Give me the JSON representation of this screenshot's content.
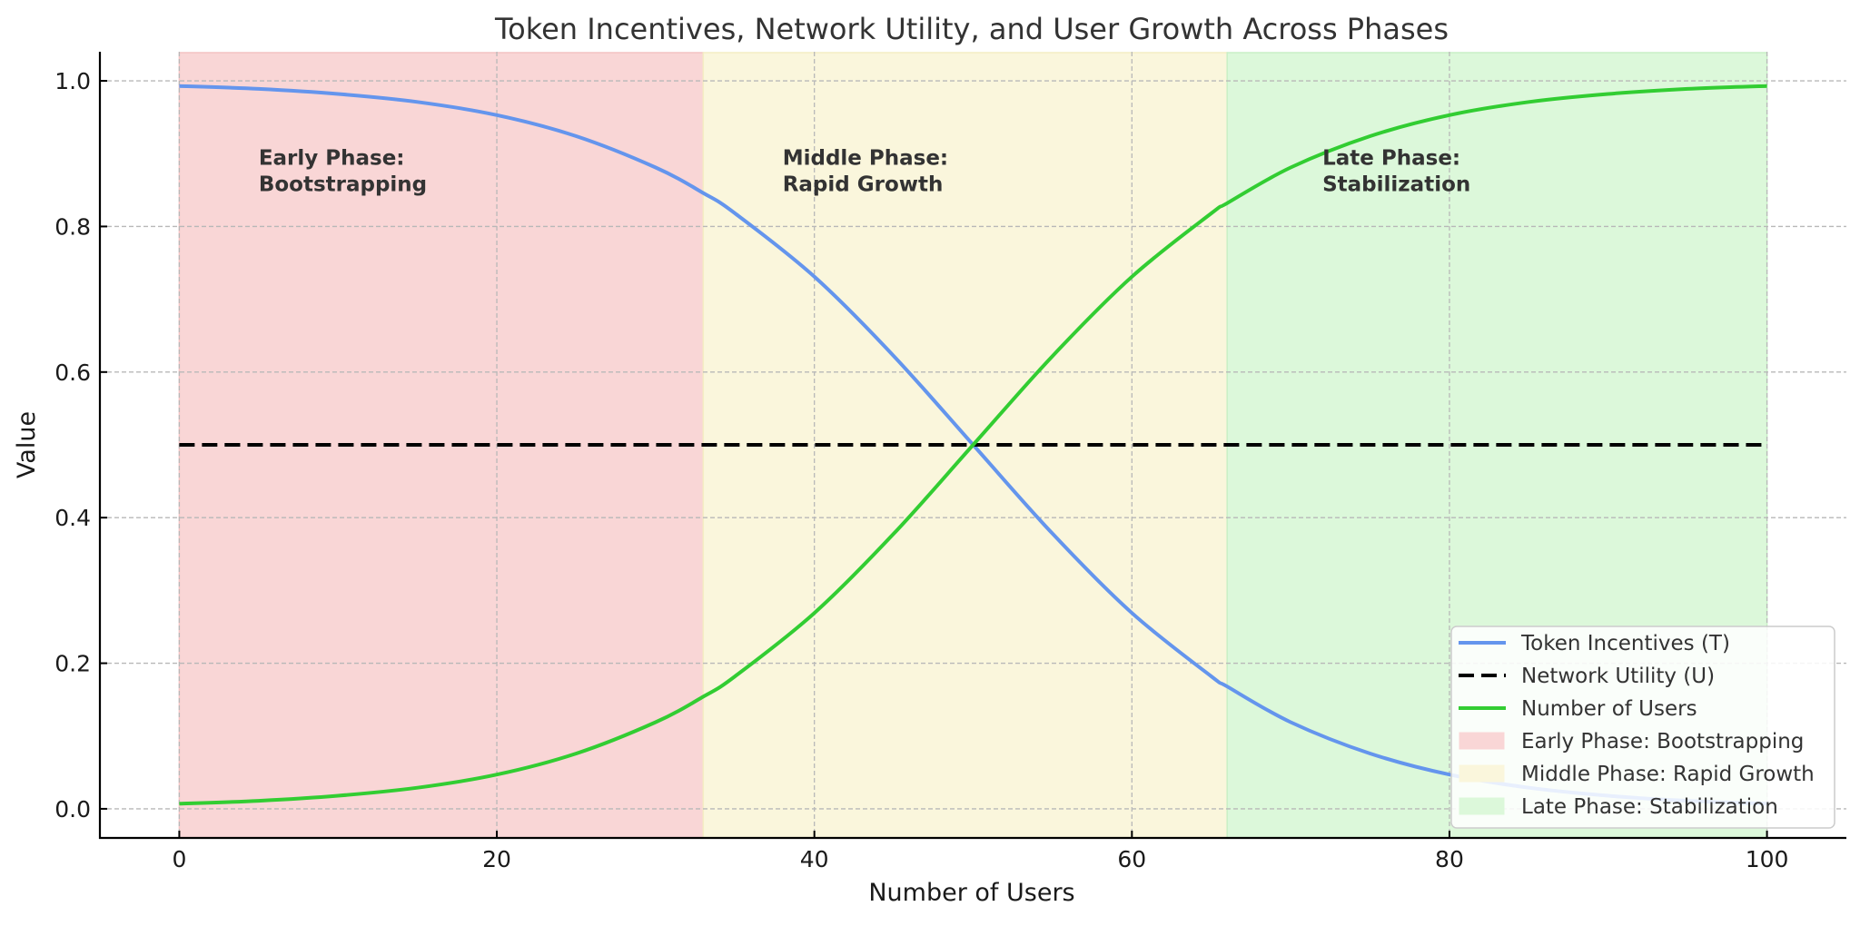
{
  "chart_data": {
    "type": "line",
    "title": "Token Incentives, Network Utility, and User Growth Across Phases",
    "xlabel": "Number of Users",
    "ylabel": "Value",
    "xlim": [
      -5,
      105
    ],
    "ylim": [
      -0.04,
      1.04
    ],
    "xticks": [
      0,
      20,
      40,
      60,
      80,
      100
    ],
    "xtick_labels": [
      "0",
      "20",
      "40",
      "60",
      "80",
      "100"
    ],
    "yticks": [
      0.0,
      0.2,
      0.4,
      0.6,
      0.8,
      1.0
    ],
    "ytick_labels": [
      "0.0",
      "0.2",
      "0.4",
      "0.6",
      "0.8",
      "1.0"
    ],
    "grid": true,
    "legend_position": "lower right",
    "x": [
      0,
      5,
      10,
      15,
      20,
      25,
      30,
      33,
      35,
      40,
      45,
      50,
      55,
      60,
      65,
      66,
      70,
      75,
      80,
      85,
      90,
      95,
      100
    ],
    "series": [
      {
        "name": "Token Incentives (T)",
        "color": "#6495ED",
        "style": "solid",
        "values": [
          0.993,
          0.989,
          0.982,
          0.971,
          0.953,
          0.924,
          0.881,
          0.846,
          0.818,
          0.731,
          0.622,
          0.5,
          0.378,
          0.269,
          0.182,
          0.168,
          0.119,
          0.076,
          0.047,
          0.029,
          0.018,
          0.011,
          0.007
        ]
      },
      {
        "name": "Network Utility (U)",
        "color": "#000000",
        "style": "dashed",
        "values": [
          0.5,
          0.5,
          0.5,
          0.5,
          0.5,
          0.5,
          0.5,
          0.5,
          0.5,
          0.5,
          0.5,
          0.5,
          0.5,
          0.5,
          0.5,
          0.5,
          0.5,
          0.5,
          0.5,
          0.5,
          0.5,
          0.5,
          0.5
        ]
      },
      {
        "name": "Number of Users",
        "color": "#32CD32",
        "style": "solid",
        "values": [
          0.007,
          0.011,
          0.018,
          0.029,
          0.047,
          0.076,
          0.119,
          0.154,
          0.182,
          0.269,
          0.378,
          0.5,
          0.622,
          0.731,
          0.818,
          0.832,
          0.881,
          0.924,
          0.953,
          0.971,
          0.982,
          0.989,
          0.993
        ]
      }
    ],
    "phases": [
      {
        "name": "Early Phase: Bootstrapping",
        "label_lines": [
          "Early Phase:",
          "Bootstrapping"
        ],
        "x_start": 0,
        "x_end": 33,
        "label_x": 5,
        "label_y": 0.9,
        "fill": "#f9d6d6",
        "edge": "#f4c4c4"
      },
      {
        "name": "Middle Phase: Rapid Growth",
        "label_lines": [
          "Middle Phase:",
          "Rapid Growth"
        ],
        "x_start": 33,
        "x_end": 66,
        "label_x": 38,
        "label_y": 0.9,
        "fill": "#faf6dc",
        "edge": "#f4edc4"
      },
      {
        "name": "Late Phase: Stabilization",
        "label_lines": [
          "Late Phase:",
          "Stabilization"
        ],
        "x_start": 66,
        "x_end": 100,
        "label_x": 72,
        "label_y": 0.9,
        "fill": "#dcf8da",
        "edge": "#c8efc6"
      }
    ],
    "legend": [
      {
        "label": "Token Incentives (T)",
        "kind": "line",
        "color": "#6495ED",
        "style": "solid"
      },
      {
        "label": "Network Utility (U)",
        "kind": "line",
        "color": "#000000",
        "style": "dashed"
      },
      {
        "label": "Number of Users",
        "kind": "line",
        "color": "#32CD32",
        "style": "solid"
      },
      {
        "label": "Early Phase: Bootstrapping",
        "kind": "patch",
        "color": "#f9d6d6"
      },
      {
        "label": "Middle Phase: Rapid Growth",
        "kind": "patch",
        "color": "#faf6dc"
      },
      {
        "label": "Late Phase: Stabilization",
        "kind": "patch",
        "color": "#dcf8da"
      }
    ]
  }
}
